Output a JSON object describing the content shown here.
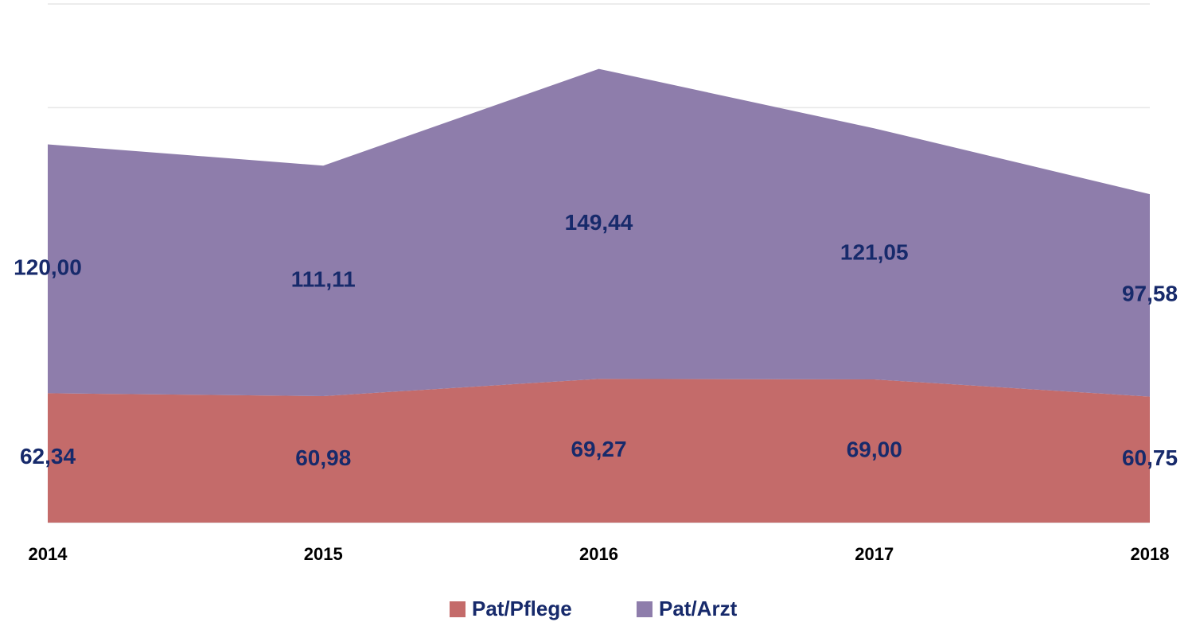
{
  "chart_data": {
    "type": "stacked_area",
    "categories": [
      "2014",
      "2015",
      "2016",
      "2017",
      "2018"
    ],
    "series": [
      {
        "name": "Pat/Pflege",
        "color": "#c46b6a",
        "values": [
          62.34,
          60.98,
          69.27,
          69.0,
          60.75
        ],
        "value_labels": [
          "62,34",
          "60,98",
          "69,27",
          "69,00",
          "60,75"
        ]
      },
      {
        "name": "Pat/Arzt",
        "color": "#8e7dab",
        "values": [
          120.0,
          111.11,
          149.44,
          121.05,
          97.58
        ],
        "value_labels": [
          "120,00",
          "111,11",
          "149,44",
          "121,05",
          "97,58"
        ]
      }
    ],
    "ylim": [
      0,
      250
    ],
    "yticks": [
      0,
      50,
      100,
      150,
      200,
      250
    ],
    "grid": true,
    "legend": "bottom"
  }
}
